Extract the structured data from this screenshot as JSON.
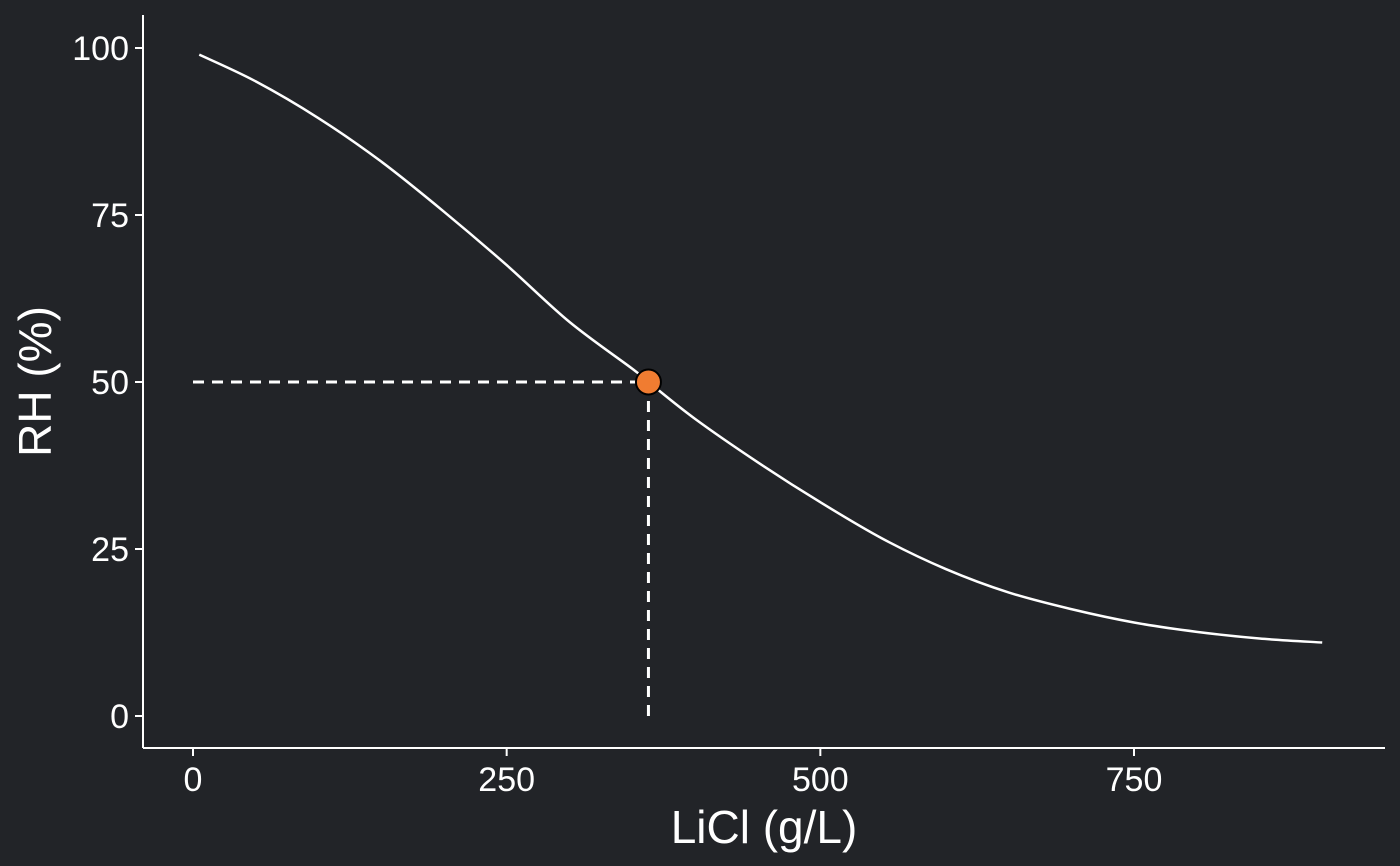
{
  "chart_data": {
    "type": "line",
    "title": "",
    "xlabel": "LiCl (g/L)",
    "ylabel": "RH (%)",
    "xlim": [
      -40,
      950
    ],
    "ylim": [
      -5,
      105
    ],
    "xticks": [
      0,
      250,
      500,
      750
    ],
    "xtick_labels": [
      "0",
      "250",
      "500",
      "750"
    ],
    "yticks": [
      0,
      25,
      50,
      75,
      100
    ],
    "ytick_labels": [
      "0",
      "25",
      "50",
      "75",
      "100"
    ],
    "grid": false,
    "legend": "none",
    "series": [
      {
        "x": [
          5,
          50,
          100,
          150,
          200,
          250,
          300,
          350,
          363,
          400,
          450,
          500,
          550,
          600,
          650,
          700,
          750,
          800,
          850,
          900
        ],
        "y": [
          99,
          95,
          89.5,
          83,
          75.5,
          67.5,
          59,
          52,
          50,
          44.5,
          38,
          32,
          26.5,
          22,
          18.5,
          16,
          14,
          12.6,
          11.6,
          11
        ]
      }
    ],
    "highlight_point": {
      "x": 363,
      "y": 50
    },
    "reference_lines": [
      {
        "orientation": "horizontal",
        "y": 50,
        "x_from": 0,
        "x_to": 363,
        "style": "dashed"
      },
      {
        "orientation": "vertical",
        "x": 363,
        "y_from": 0,
        "y_to": 50,
        "style": "dashed"
      }
    ],
    "colors": {
      "background": "#222428",
      "axis": "#ffffff",
      "curve": "#ffffff",
      "reference_line": "#ffffff",
      "point_fill": "#f07c31",
      "point_stroke": "#000000"
    }
  }
}
